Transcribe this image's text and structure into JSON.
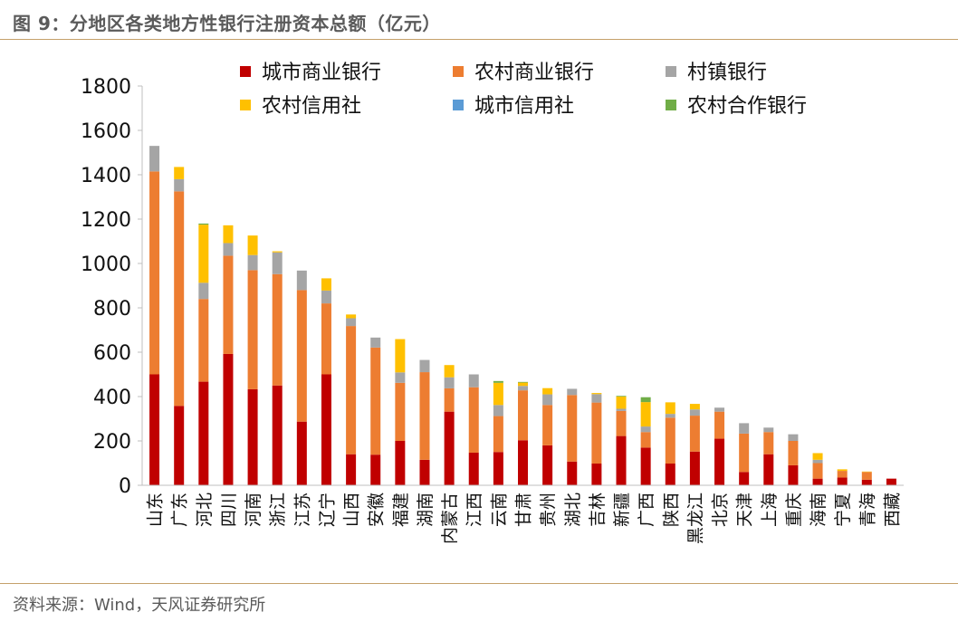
{
  "title": "图 9：分地区各类地方性银行注册资本总额（亿元）",
  "source": "资料来源：Wind，天风证券研究所",
  "chart_data": {
    "type": "bar",
    "stacked": true,
    "title": "",
    "xlabel": "",
    "ylabel": "",
    "ylim": [
      0,
      1800
    ],
    "yticks": [
      0,
      200,
      400,
      600,
      800,
      1000,
      1200,
      1400,
      1600,
      1800
    ],
    "grid": false,
    "legend_position": "top",
    "categories": [
      "山东",
      "广东",
      "河北",
      "四川",
      "河南",
      "浙江",
      "江苏",
      "辽宁",
      "山西",
      "安徽",
      "福建",
      "湖南",
      "内蒙古",
      "江西",
      "云南",
      "甘肃",
      "贵州",
      "湖北",
      "吉林",
      "新疆",
      "广西",
      "陕西",
      "黑龙江",
      "北京",
      "天津",
      "上海",
      "重庆",
      "海南",
      "宁夏",
      "青海",
      "西藏"
    ],
    "series": [
      {
        "name": "城市商业银行",
        "color": "#c00000",
        "values": [
          500,
          358,
          467,
          592,
          433,
          450,
          287,
          500,
          140,
          138,
          200,
          115,
          332,
          147,
          150,
          203,
          180,
          107,
          98,
          222,
          170,
          98,
          152,
          210,
          60,
          140,
          90,
          30,
          35,
          25,
          30
        ]
      },
      {
        "name": "农村商业银行",
        "color": "#ed7d31",
        "values": [
          915,
          967,
          373,
          443,
          537,
          502,
          593,
          320,
          578,
          483,
          262,
          395,
          105,
          295,
          162,
          225,
          182,
          300,
          275,
          113,
          70,
          207,
          162,
          122,
          173,
          100,
          110,
          70,
          30,
          35,
          0
        ]
      },
      {
        "name": "村镇银行",
        "color": "#a5a5a5",
        "values": [
          115,
          55,
          73,
          57,
          68,
          98,
          88,
          58,
          35,
          45,
          47,
          55,
          50,
          58,
          50,
          20,
          48,
          28,
          38,
          10,
          25,
          17,
          28,
          18,
          47,
          20,
          30,
          15,
          0,
          0,
          0
        ]
      },
      {
        "name": "农村信用社",
        "color": "#ffc000",
        "values": [
          0,
          55,
          262,
          80,
          88,
          5,
          0,
          55,
          17,
          0,
          150,
          0,
          55,
          0,
          100,
          15,
          28,
          0,
          5,
          55,
          110,
          52,
          25,
          0,
          0,
          0,
          0,
          30,
          7,
          2,
          0
        ]
      },
      {
        "name": "城市信用社",
        "color": "#5b9bd5",
        "values": [
          0,
          0,
          0,
          0,
          0,
          0,
          0,
          0,
          0,
          0,
          0,
          0,
          0,
          0,
          0,
          0,
          0,
          0,
          0,
          0,
          0,
          0,
          0,
          0,
          0,
          0,
          0,
          0,
          0,
          0,
          0
        ]
      },
      {
        "name": "农村合作银行",
        "color": "#70ad47",
        "values": [
          0,
          0,
          5,
          0,
          0,
          0,
          0,
          0,
          0,
          0,
          0,
          0,
          0,
          0,
          8,
          3,
          0,
          0,
          0,
          3,
          22,
          0,
          0,
          0,
          0,
          0,
          0,
          0,
          0,
          0,
          0
        ]
      }
    ]
  }
}
